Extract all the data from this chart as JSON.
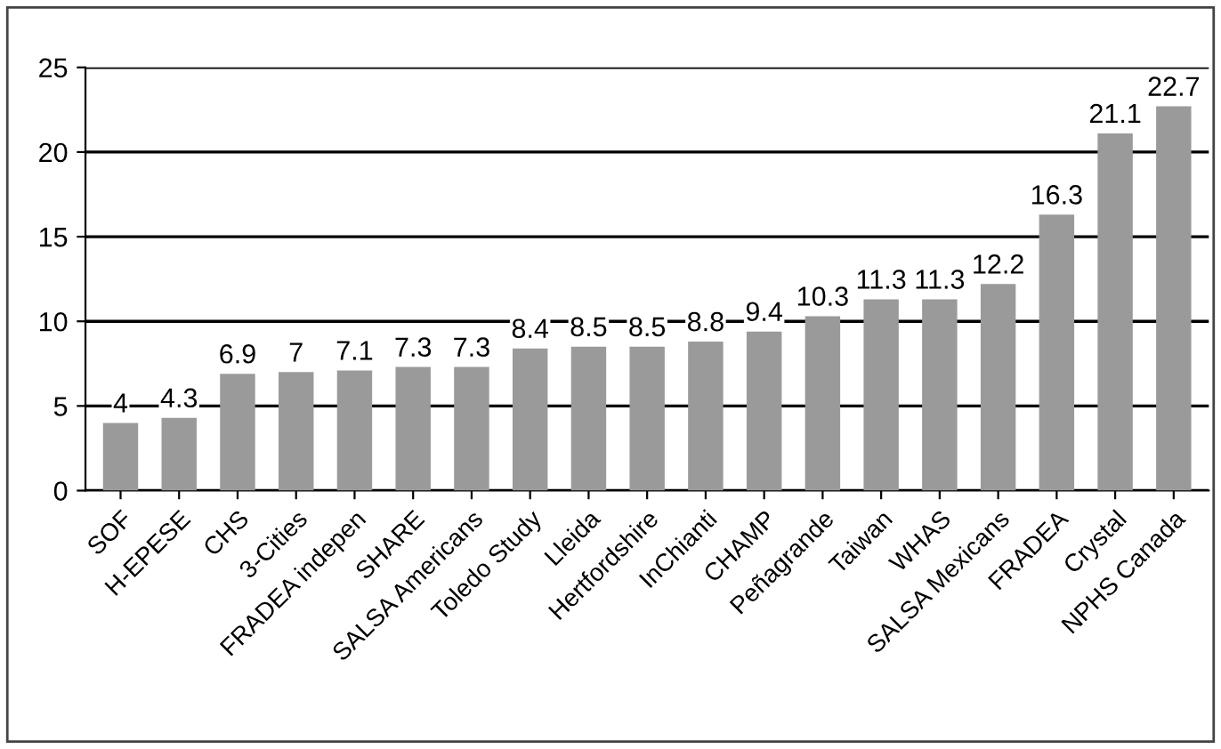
{
  "chart_data": {
    "type": "bar",
    "categories": [
      "SOF",
      "H-EPESE",
      "CHS",
      "3-Cities",
      "FRADEA indepen",
      "SHARE",
      "SALSA Americans",
      "Toledo Study",
      "Lleida",
      "Hertfordshire",
      "InChianti",
      "CHAMP",
      "Peñagrande",
      "Taiwan",
      "WHAS",
      "SALSA Mexicans",
      "FRADEA",
      "Crystal",
      "NPHS Canada"
    ],
    "values": [
      4,
      4.3,
      6.9,
      7,
      7.1,
      7.3,
      7.3,
      8.4,
      8.5,
      8.5,
      8.8,
      9.4,
      10.3,
      11.3,
      11.3,
      12.2,
      16.3,
      21.1,
      22.7
    ],
    "color": "#9a9a9a",
    "ylim": [
      0,
      25
    ],
    "yticks": [
      0,
      5,
      10,
      15,
      20,
      25
    ],
    "grid": "y",
    "data_labels": true,
    "legend": false
  }
}
